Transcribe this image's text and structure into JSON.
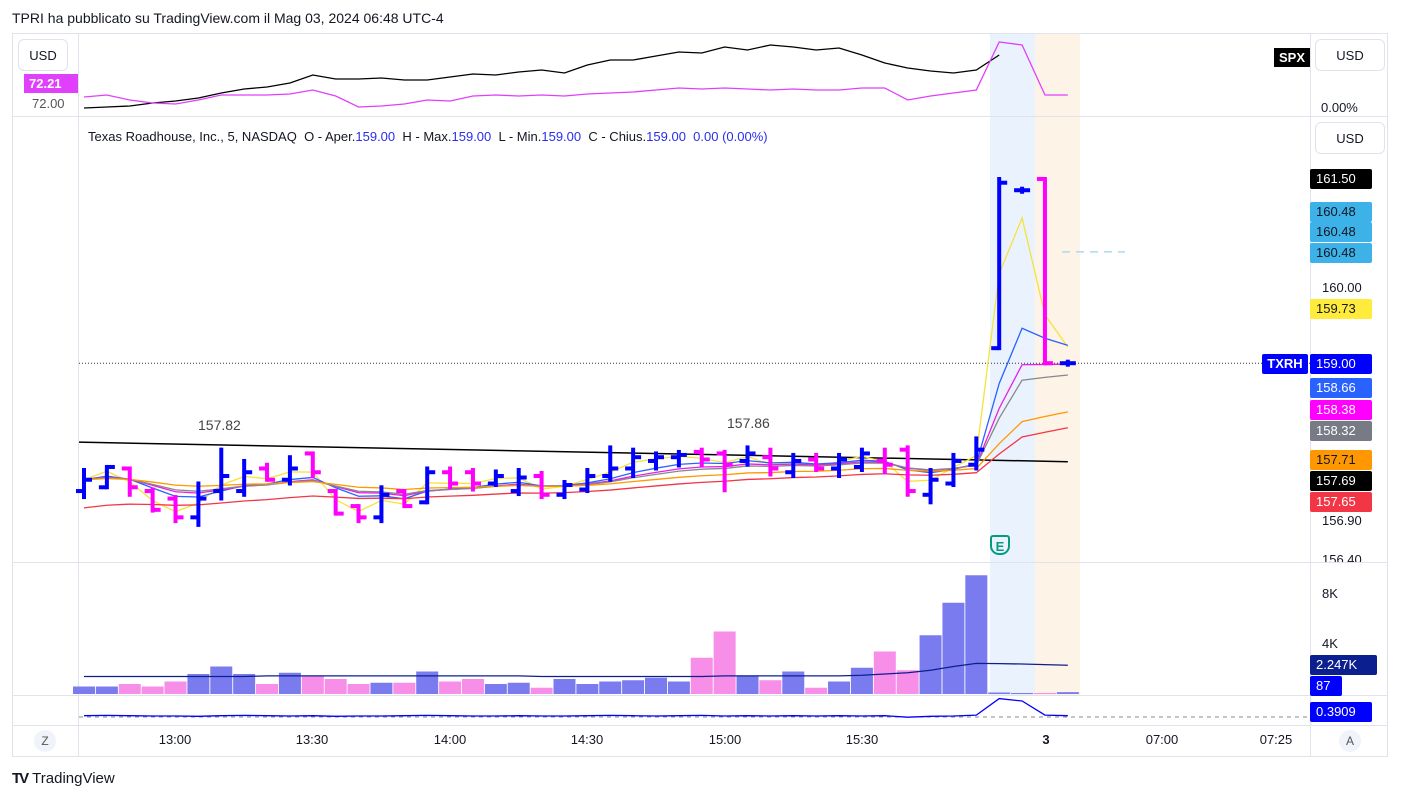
{
  "header": {
    "text": "TPRI ha pubblicato su TradingView.com il Mag 03, 2024 06:48 UTC-4"
  },
  "footer": {
    "brand": "TradingView"
  },
  "compare_pane": {
    "currency_left": "USD",
    "currency_right": "USD",
    "symbol_badge": "SPX",
    "left_value": "72.21",
    "left_axis_hidden": "72.00",
    "right_axis": "0.00%",
    "spx_series": [
      72.0,
      72.01,
      72.02,
      72.05,
      72.07,
      72.1,
      72.15,
      72.19,
      72.21,
      72.25,
      72.33,
      72.29,
      72.29,
      72.3,
      72.28,
      72.28,
      72.31,
      72.34,
      72.33,
      72.36,
      72.38,
      72.35,
      72.43,
      72.48,
      72.48,
      72.52,
      72.56,
      72.55,
      72.61,
      72.58,
      72.63,
      72.61,
      72.58,
      72.6,
      72.53,
      72.45,
      72.4,
      72.37,
      72.35,
      72.38,
      72.53
    ],
    "tpri_series": [
      72.11,
      72.13,
      72.08,
      72.05,
      72.04,
      72.08,
      72.13,
      72.13,
      72.13,
      72.14,
      72.18,
      72.12,
      72.01,
      72.02,
      72.04,
      72.08,
      72.07,
      72.12,
      72.13,
      72.12,
      72.13,
      72.12,
      72.14,
      72.15,
      72.16,
      72.18,
      72.2,
      72.19,
      72.2,
      72.19,
      72.18,
      72.19,
      72.18,
      72.18,
      72.2,
      72.2,
      72.08,
      72.12,
      72.15,
      72.18,
      72.66,
      72.63,
      72.13,
      72.13
    ],
    "colors": {
      "spx": "#000000",
      "tpri": "#e040fb"
    }
  },
  "main_pane": {
    "currency": "USD",
    "legend": {
      "title": "Texas Roadhouse, Inc., 5, NASDAQ",
      "o_label": "O - Aper.",
      "o": "159.00",
      "h_label": "H - Max.",
      "h": "159.00",
      "l_label": "L - Min.",
      "l": "159.00",
      "c_label": "C - Chius.",
      "c": "159.00",
      "change": "0.00 (0.00%)"
    },
    "symbol_badge": "TXRH",
    "annotations": [
      "157.82",
      "157.86"
    ],
    "earnings_badge": "E",
    "axis_ticks": [
      "160.00",
      "156.90",
      "156.40"
    ],
    "price_labels": [
      {
        "value": "161.50",
        "bg": "#000000",
        "fg": "#ffffff"
      },
      {
        "value": "160.48",
        "bg": "#3db2e8",
        "fg": "#131722"
      },
      {
        "value": "160.48",
        "bg": "#3db2e8",
        "fg": "#131722"
      },
      {
        "value": "160.48",
        "bg": "#3db2e8",
        "fg": "#131722"
      },
      {
        "value": "159.73",
        "bg": "#ffeb3b",
        "fg": "#131722"
      },
      {
        "value": "159.00",
        "bg": "#0000ff",
        "fg": "#ffffff"
      },
      {
        "value": "158.66",
        "bg": "#2962ff",
        "fg": "#ffffff"
      },
      {
        "value": "158.38",
        "bg": "#ff00ff",
        "fg": "#ffffff"
      },
      {
        "value": "158.32",
        "bg": "#787b86",
        "fg": "#ffffff"
      },
      {
        "value": "157.71",
        "bg": "#ff9800",
        "fg": "#131722"
      },
      {
        "value": "157.69",
        "bg": "#000000",
        "fg": "#ffffff"
      },
      {
        "value": "157.65",
        "bg": "#f23645",
        "fg": "#ffffff"
      }
    ],
    "colors": {
      "up": "#0000ff",
      "down": "#ff00ff"
    },
    "ohlc": [
      [
        157.3,
        157.58,
        157.22,
        157.45
      ],
      [
        157.35,
        157.62,
        157.35,
        157.62
      ],
      [
        157.6,
        157.6,
        157.25,
        157.35
      ],
      [
        157.3,
        157.32,
        157.04,
        157.05
      ],
      [
        157.2,
        157.22,
        156.9,
        156.95
      ],
      [
        156.95,
        157.4,
        156.85,
        157.2
      ],
      [
        157.3,
        157.85,
        157.2,
        157.5
      ],
      [
        157.3,
        157.7,
        157.25,
        157.55
      ],
      [
        157.6,
        157.65,
        157.45,
        157.45
      ],
      [
        157.45,
        157.75,
        157.4,
        157.6
      ],
      [
        157.8,
        157.8,
        157.5,
        157.55
      ],
      [
        157.3,
        157.3,
        157.0,
        157.0
      ],
      [
        157.1,
        157.1,
        156.9,
        156.95
      ],
      [
        156.95,
        157.35,
        156.9,
        157.25
      ],
      [
        157.3,
        157.3,
        157.1,
        157.1
      ],
      [
        157.15,
        157.6,
        157.15,
        157.55
      ],
      [
        157.55,
        157.6,
        157.35,
        157.4
      ],
      [
        157.55,
        157.58,
        157.32,
        157.4
      ],
      [
        157.4,
        157.56,
        157.38,
        157.5
      ],
      [
        157.3,
        157.58,
        157.26,
        157.48
      ],
      [
        157.5,
        157.54,
        157.22,
        157.25
      ],
      [
        157.25,
        157.42,
        157.22,
        157.38
      ],
      [
        157.32,
        157.58,
        157.3,
        157.5
      ],
      [
        157.5,
        157.88,
        157.45,
        157.6
      ],
      [
        157.6,
        157.85,
        157.5,
        157.75
      ],
      [
        157.7,
        157.8,
        157.6,
        157.75
      ],
      [
        157.75,
        157.82,
        157.64,
        157.78
      ],
      [
        157.82,
        157.85,
        157.65,
        157.72
      ],
      [
        157.8,
        157.82,
        157.31,
        157.65
      ],
      [
        157.7,
        157.88,
        157.65,
        157.8
      ],
      [
        157.75,
        157.85,
        157.52,
        157.6
      ],
      [
        157.55,
        157.78,
        157.5,
        157.7
      ],
      [
        157.72,
        157.78,
        157.58,
        157.6
      ],
      [
        157.6,
        157.78,
        157.5,
        157.72
      ],
      [
        157.62,
        157.85,
        157.58,
        157.8
      ],
      [
        157.7,
        157.85,
        157.55,
        157.65
      ],
      [
        157.85,
        157.88,
        157.25,
        157.3
      ],
      [
        157.25,
        157.58,
        157.15,
        157.45
      ],
      [
        157.4,
        157.78,
        157.38,
        157.7
      ],
      [
        157.65,
        158.0,
        157.6,
        157.85
      ],
      [
        159.2,
        161.45,
        159.2,
        161.4
      ],
      [
        161.3,
        161.32,
        161.28,
        161.3
      ],
      [
        161.45,
        161.45,
        159.0,
        159.0
      ],
      [
        159.0,
        159.02,
        158.98,
        159.0
      ]
    ],
    "moving_averages": [
      {
        "color": "#f5e23a",
        "period": 2
      },
      {
        "color": "#2962ff",
        "period": 6
      },
      {
        "color": "#e91ee6",
        "period": 9
      },
      {
        "color": "#888888",
        "period": 11
      },
      {
        "color": "#ff9800",
        "period": 22
      },
      {
        "color": "#f23645",
        "period": 30,
        "seed": 157.05
      }
    ],
    "long_trend": {
      "color": "#000000",
      "start": 157.95,
      "end": 157.69
    },
    "target_line": 160.48
  },
  "volume_pane": {
    "ticks": [
      "8K",
      "4K"
    ],
    "labels": [
      {
        "value": "2.247K",
        "bg": "#0c1f8f"
      },
      {
        "value": "87",
        "bg": "#0000ff"
      }
    ],
    "values_k": [
      0.6,
      0.6,
      0.8,
      0.6,
      1.0,
      1.6,
      2.2,
      1.6,
      0.8,
      1.7,
      1.4,
      1.2,
      0.8,
      0.9,
      0.9,
      1.8,
      1.0,
      1.2,
      0.8,
      0.9,
      0.5,
      1.2,
      0.8,
      1.0,
      1.1,
      1.3,
      1.0,
      2.9,
      5.0,
      1.4,
      1.1,
      1.8,
      0.5,
      1.0,
      2.1,
      3.4,
      1.9,
      4.7,
      7.3,
      9.5,
      0.12,
      0.08,
      0.08,
      0.15
    ],
    "ma_k": [
      1.4,
      1.4,
      1.4,
      1.4,
      1.4,
      1.4,
      1.4,
      1.4,
      1.45,
      1.45,
      1.45,
      1.45,
      1.45,
      1.45,
      1.45,
      1.45,
      1.45,
      1.45,
      1.45,
      1.45,
      1.4,
      1.4,
      1.4,
      1.4,
      1.4,
      1.4,
      1.4,
      1.4,
      1.45,
      1.45,
      1.45,
      1.45,
      1.45,
      1.45,
      1.5,
      1.6,
      1.7,
      1.9,
      2.2,
      2.45,
      2.43,
      2.4,
      2.35,
      2.3
    ],
    "colors": {
      "up": "#7b7bf0",
      "down": "#f78ee8"
    }
  },
  "indicator_pane": {
    "label": "0.3909",
    "values": [
      0.391,
      0.392,
      0.391,
      0.39,
      0.39,
      0.389,
      0.391,
      0.392,
      0.391,
      0.39,
      0.391,
      0.389,
      0.39,
      0.39,
      0.391,
      0.392,
      0.391,
      0.39,
      0.39,
      0.391,
      0.39,
      0.39,
      0.391,
      0.392,
      0.391,
      0.39,
      0.391,
      0.392,
      0.39,
      0.391,
      0.39,
      0.391,
      0.39,
      0.391,
      0.39,
      0.391,
      0.386,
      0.389,
      0.39,
      0.393,
      0.448,
      0.44,
      0.393,
      0.391
    ]
  },
  "time_axis": {
    "labels": [
      "13:00",
      "13:30",
      "14:00",
      "14:30",
      "15:00",
      "15:30",
      "3",
      "07:00",
      "07:25"
    ],
    "left_button": "Z",
    "right_button": "A"
  }
}
